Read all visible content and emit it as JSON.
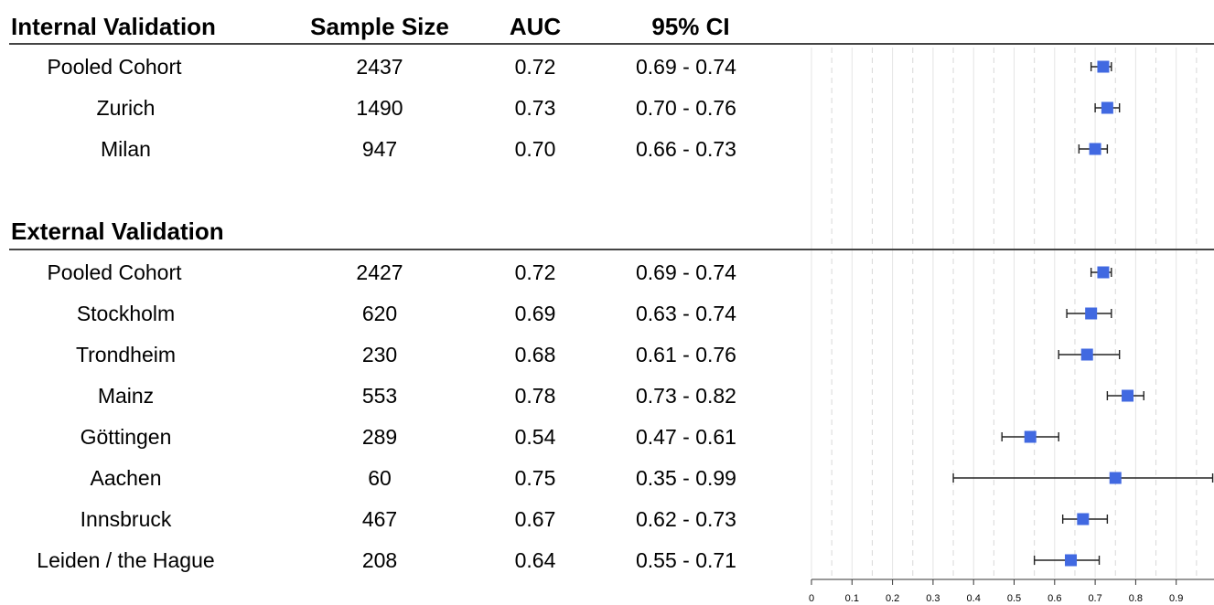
{
  "columns": {
    "sample_size": "Sample Size",
    "auc": "AUC",
    "ci": "95% CI"
  },
  "sections": [
    {
      "title": "Internal Validation",
      "rows": [
        {
          "name": "Pooled Cohort",
          "n": "2437",
          "auc": "0.72",
          "ci": "0.69 - 0.74"
        },
        {
          "name": "Zurich",
          "n": "1490",
          "auc": "0.73",
          "ci": "0.70 - 0.76"
        },
        {
          "name": "Milan",
          "n": "947",
          "auc": "0.70",
          "ci": "0.66 - 0.73"
        }
      ]
    },
    {
      "title": "External Validation",
      "rows": [
        {
          "name": "Pooled Cohort",
          "n": "2427",
          "auc": "0.72",
          "ci": "0.69 - 0.74"
        },
        {
          "name": "Stockholm",
          "n": "620",
          "auc": "0.69",
          "ci": "0.63 - 0.74"
        },
        {
          "name": "Trondheim",
          "n": "230",
          "auc": "0.68",
          "ci": "0.61 - 0.76"
        },
        {
          "name": "Mainz",
          "n": "553",
          "auc": "0.78",
          "ci": "0.73 - 0.82"
        },
        {
          "name": "Göttingen",
          "n": "289",
          "auc": "0.54",
          "ci": "0.47 - 0.61"
        },
        {
          "name": "Aachen",
          "n": "60",
          "auc": "0.75",
          "ci": "0.35 - 0.99"
        },
        {
          "name": "Innsbruck",
          "n": "467",
          "auc": "0.67",
          "ci": "0.62 - 0.73"
        },
        {
          "name": "Leiden / the Hague",
          "n": "208",
          "auc": "0.64",
          "ci": "0.55 - 0.71"
        }
      ]
    }
  ],
  "chart_data": {
    "type": "forest",
    "x_ticks": [
      "0",
      "0.1",
      "0.2",
      "0.3",
      "0.4",
      "0.5",
      "0.6",
      "0.7",
      "0.8",
      "0.9"
    ],
    "xlim": [
      0,
      1
    ],
    "grid": true,
    "point_color": "#4169e1",
    "points": [
      {
        "group": "Internal Validation",
        "label": "Pooled Cohort",
        "auc": 0.72,
        "lo": 0.69,
        "hi": 0.74
      },
      {
        "group": "Internal Validation",
        "label": "Zurich",
        "auc": 0.73,
        "lo": 0.7,
        "hi": 0.76
      },
      {
        "group": "Internal Validation",
        "label": "Milan",
        "auc": 0.7,
        "lo": 0.66,
        "hi": 0.73
      },
      {
        "group": "External Validation",
        "label": "Pooled Cohort",
        "auc": 0.72,
        "lo": 0.69,
        "hi": 0.74
      },
      {
        "group": "External Validation",
        "label": "Stockholm",
        "auc": 0.69,
        "lo": 0.63,
        "hi": 0.74
      },
      {
        "group": "External Validation",
        "label": "Trondheim",
        "auc": 0.68,
        "lo": 0.61,
        "hi": 0.76
      },
      {
        "group": "External Validation",
        "label": "Mainz",
        "auc": 0.78,
        "lo": 0.73,
        "hi": 0.82
      },
      {
        "group": "External Validation",
        "label": "Göttingen",
        "auc": 0.54,
        "lo": 0.47,
        "hi": 0.61
      },
      {
        "group": "External Validation",
        "label": "Aachen",
        "auc": 0.75,
        "lo": 0.35,
        "hi": 0.99
      },
      {
        "group": "External Validation",
        "label": "Innsbruck",
        "auc": 0.67,
        "lo": 0.62,
        "hi": 0.73
      },
      {
        "group": "External Validation",
        "label": "Leiden / the Hague",
        "auc": 0.64,
        "lo": 0.55,
        "hi": 0.71
      }
    ]
  }
}
